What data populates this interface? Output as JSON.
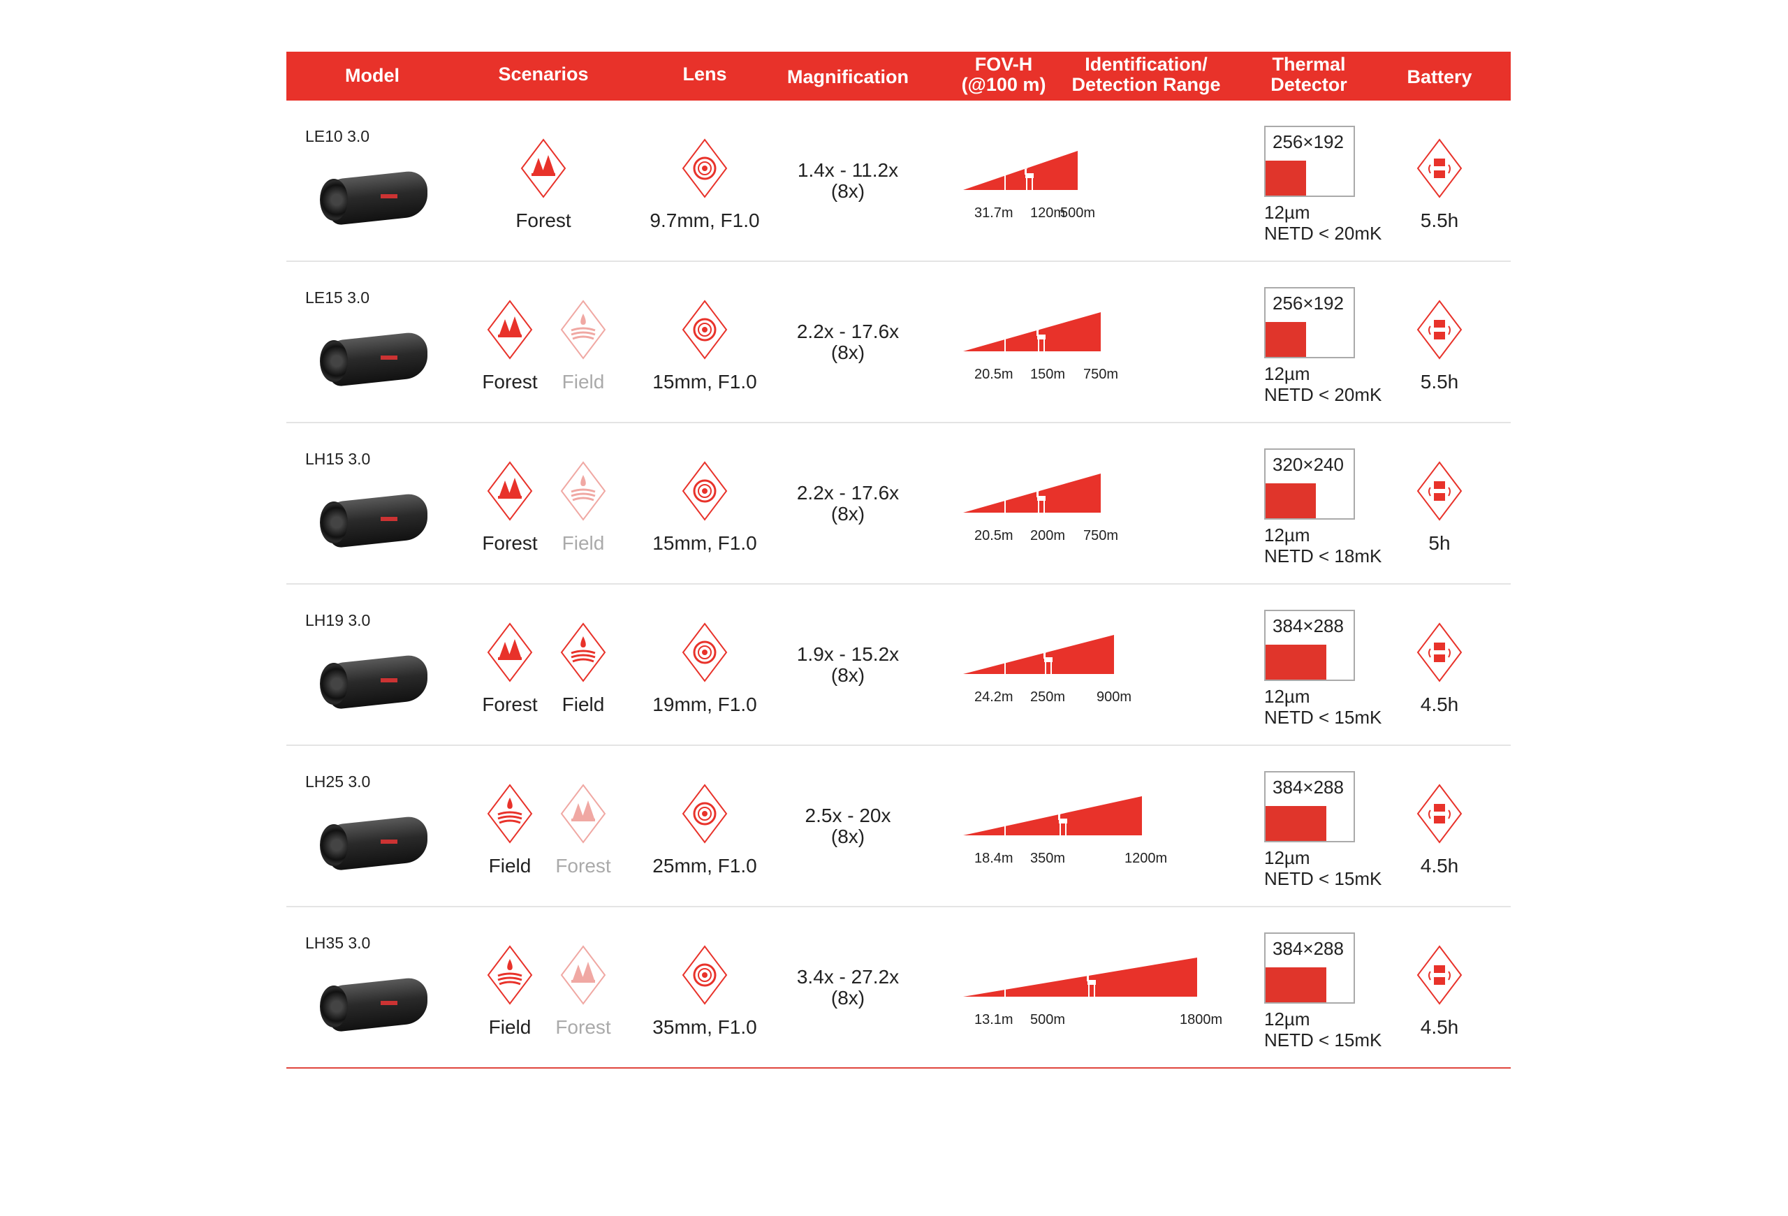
{
  "colors": {
    "accent": "#e8322a",
    "inactive": "#f0a8a3"
  },
  "header": {
    "model": "Model",
    "scenarios": "Scenarios",
    "lens": "Lens",
    "magnification": "Magnification",
    "fov_1": "FOV-H",
    "fov_2": "(@100 m)",
    "range_1": "Identification/",
    "range_2": "Detection Range",
    "thermal_1": "Thermal",
    "thermal_2": "Detector",
    "battery": "Battery"
  },
  "rows": [
    {
      "model": "LE10 3.0",
      "scenarios": [
        {
          "label": "Forest",
          "icon": "forest-icon",
          "active": true
        }
      ],
      "lens": "9.7mm, F1.0",
      "mag": "1.4x - 11.2x",
      "mag_zoom": "(8x)",
      "fov": "31.7m",
      "ident": "120m",
      "detect": "500m",
      "detect_m": 500,
      "resolution": "256×192",
      "pixel": "12µm",
      "netd": "NETD < 20mK",
      "battery": "5.5h"
    },
    {
      "model": "LE15 3.0",
      "scenarios": [
        {
          "label": "Forest",
          "icon": "forest-icon",
          "active": true
        },
        {
          "label": "Field",
          "icon": "field-icon",
          "active": false
        }
      ],
      "lens": "15mm, F1.0",
      "mag": "2.2x - 17.6x",
      "mag_zoom": "(8x)",
      "fov": "20.5m",
      "ident": "150m",
      "detect": "750m",
      "detect_m": 750,
      "resolution": "256×192",
      "pixel": "12µm",
      "netd": "NETD < 20mK",
      "battery": "5.5h"
    },
    {
      "model": "LH15 3.0",
      "scenarios": [
        {
          "label": "Forest",
          "icon": "forest-icon",
          "active": true
        },
        {
          "label": "Field",
          "icon": "field-icon",
          "active": false
        }
      ],
      "lens": "15mm, F1.0",
      "mag": "2.2x - 17.6x",
      "mag_zoom": "(8x)",
      "fov": "20.5m",
      "ident": "200m",
      "detect": "750m",
      "detect_m": 750,
      "resolution": "320×240",
      "pixel": "12µm",
      "netd": "NETD < 18mK",
      "battery": "5h"
    },
    {
      "model": "LH19 3.0",
      "scenarios": [
        {
          "label": "Forest",
          "icon": "forest-icon",
          "active": true
        },
        {
          "label": "Field",
          "icon": "field-icon",
          "active": true
        }
      ],
      "lens": "19mm, F1.0",
      "mag": "1.9x - 15.2x",
      "mag_zoom": "(8x)",
      "fov": "24.2m",
      "ident": "250m",
      "detect": "900m",
      "detect_m": 900,
      "resolution": "384×288",
      "pixel": "12µm",
      "netd": "NETD < 15mK",
      "battery": "4.5h"
    },
    {
      "model": "LH25 3.0",
      "scenarios": [
        {
          "label": "Field",
          "icon": "field-icon",
          "active": true
        },
        {
          "label": "Forest",
          "icon": "forest-icon",
          "active": false
        }
      ],
      "lens": "25mm, F1.0",
      "mag": "2.5x - 20x",
      "mag_zoom": "(8x)",
      "fov": "18.4m",
      "ident": "350m",
      "detect": "1200m",
      "detect_m": 1200,
      "resolution": "384×288",
      "pixel": "12µm",
      "netd": "NETD < 15mK",
      "battery": "4.5h"
    },
    {
      "model": "LH35 3.0",
      "scenarios": [
        {
          "label": "Field",
          "icon": "field-icon",
          "active": true
        },
        {
          "label": "Forest",
          "icon": "forest-icon",
          "active": false
        }
      ],
      "lens": "35mm, F1.0",
      "mag": "3.4x - 27.2x",
      "mag_zoom": "(8x)",
      "fov": "13.1m",
      "ident": "500m",
      "detect": "1800m",
      "detect_m": 1800,
      "resolution": "384×288",
      "pixel": "12µm",
      "netd": "NETD < 15mK",
      "battery": "4.5h"
    }
  ]
}
